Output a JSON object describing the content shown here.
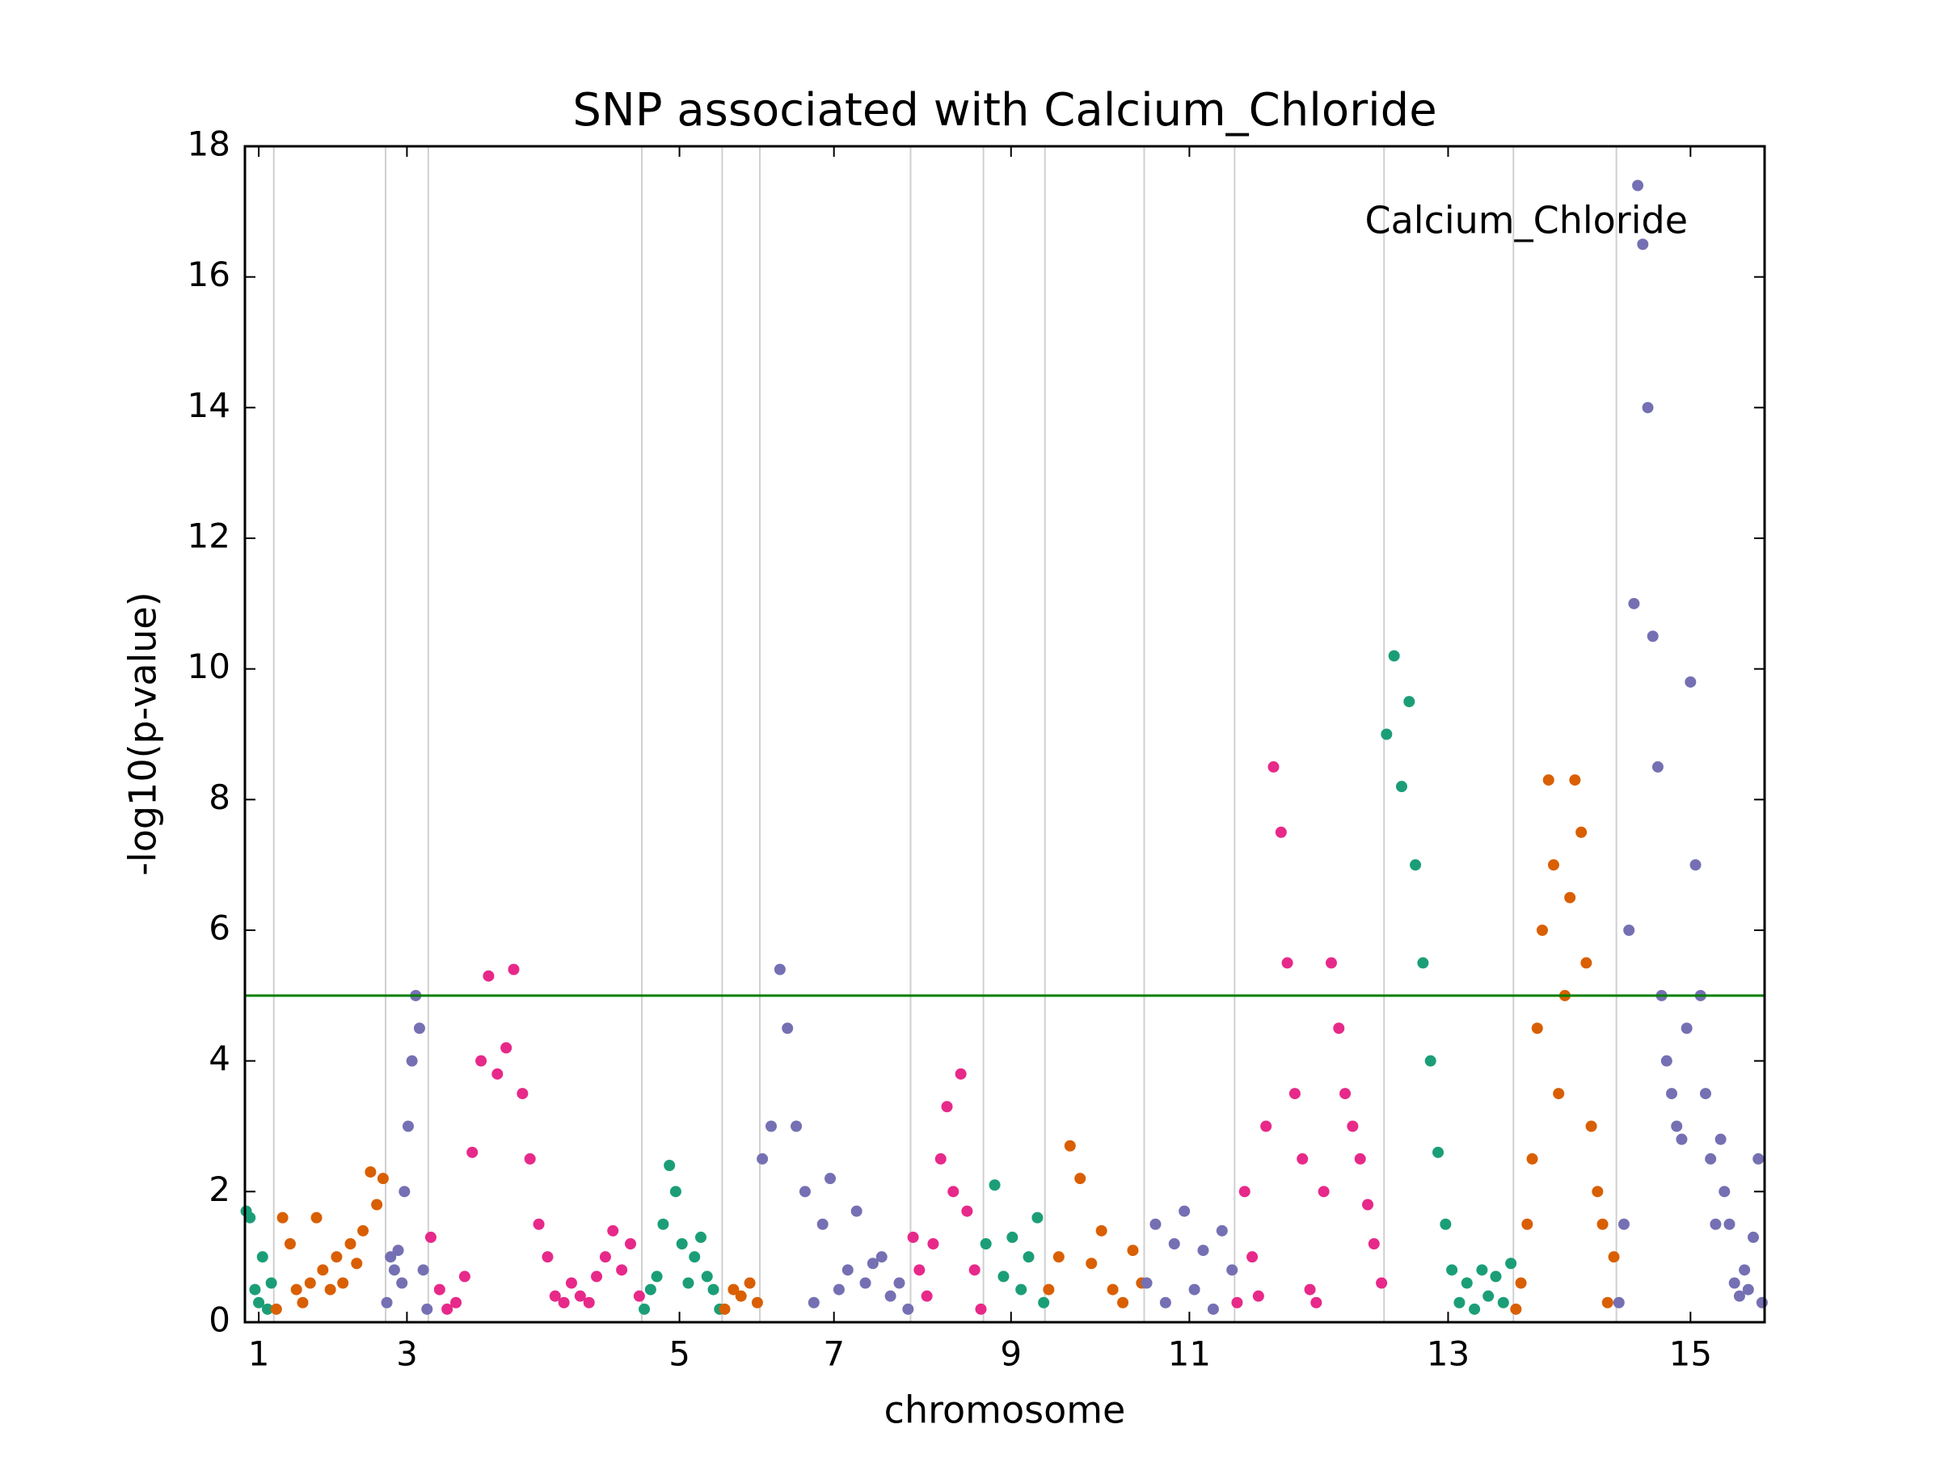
{
  "chart_data": {
    "type": "scatter",
    "title": "SNP associated with Calcium_Chloride",
    "xlabel": "chromosome",
    "ylabel": "-log10(p-value)",
    "legend": "Calcium_Chloride",
    "legend_position": "upper right",
    "xlim": [
      0,
      12.1
    ],
    "ylim": [
      0,
      18
    ],
    "yticks": [
      0,
      2,
      4,
      6,
      8,
      10,
      12,
      14,
      16,
      18
    ],
    "xticks": [
      {
        "value": 0.11,
        "label": "1"
      },
      {
        "value": 1.29,
        "label": "3"
      },
      {
        "value": 3.46,
        "label": "5"
      },
      {
        "value": 4.69,
        "label": "7"
      },
      {
        "value": 6.1,
        "label": "9"
      },
      {
        "value": 7.52,
        "label": "11"
      },
      {
        "value": 9.58,
        "label": "13"
      },
      {
        "value": 11.51,
        "label": "15"
      }
    ],
    "xgrid": [
      0.23,
      1.12,
      1.46,
      3.16,
      3.8,
      4.1,
      5.3,
      5.88,
      6.37,
      7.16,
      7.88,
      9.07,
      10.1,
      10.92
    ],
    "threshold": 5,
    "threshold_color": "#008000",
    "series": [
      {
        "color": "#1b9e77",
        "x": [
          0.01,
          0.04,
          0.08,
          0.11,
          0.14,
          0.18,
          0.21
        ],
        "values": [
          1.7,
          1.6,
          0.5,
          0.3,
          1.0,
          0.2,
          0.6
        ]
      },
      {
        "color": "#d95f02",
        "x": [
          0.25,
          0.3,
          0.36,
          0.41,
          0.46,
          0.52,
          0.57,
          0.62,
          0.68,
          0.73,
          0.78,
          0.84,
          0.89,
          0.94,
          1.0,
          1.05,
          1.1
        ],
        "values": [
          0.2,
          1.6,
          1.2,
          0.5,
          0.3,
          0.6,
          1.6,
          0.8,
          0.5,
          1.0,
          0.6,
          1.2,
          0.9,
          1.4,
          2.3,
          1.8,
          2.2
        ]
      },
      {
        "color": "#7570b3",
        "x": [
          1.13,
          1.16,
          1.19,
          1.22,
          1.25,
          1.27,
          1.3,
          1.33,
          1.36,
          1.39,
          1.42,
          1.45
        ],
        "values": [
          0.3,
          1.0,
          0.8,
          1.1,
          0.6,
          2.0,
          3.0,
          4.0,
          5.0,
          4.5,
          0.8,
          0.2
        ]
      },
      {
        "color": "#e7298a",
        "x": [
          1.48,
          1.55,
          1.61,
          1.68,
          1.75,
          1.81,
          1.88,
          1.94,
          2.01,
          2.08,
          2.14,
          2.21,
          2.27,
          2.34,
          2.41,
          2.47,
          2.54,
          2.6,
          2.67,
          2.74,
          2.8,
          2.87,
          2.93,
          3.0,
          3.07,
          3.14
        ],
        "values": [
          1.3,
          0.5,
          0.2,
          0.3,
          0.7,
          2.6,
          4.0,
          5.3,
          3.8,
          4.2,
          5.4,
          3.5,
          2.5,
          1.5,
          1.0,
          0.4,
          0.3,
          0.6,
          0.4,
          0.3,
          0.7,
          1.0,
          1.4,
          0.8,
          1.2,
          0.4
        ]
      },
      {
        "color": "#1b9e77",
        "x": [
          3.18,
          3.23,
          3.28,
          3.33,
          3.38,
          3.43,
          3.48,
          3.53,
          3.58,
          3.63,
          3.68,
          3.73,
          3.78
        ],
        "values": [
          0.2,
          0.5,
          0.7,
          1.5,
          2.4,
          2.0,
          1.2,
          0.6,
          1.0,
          1.3,
          0.7,
          0.5,
          0.2
        ]
      },
      {
        "color": "#d95f02",
        "x": [
          3.82,
          3.89,
          3.95,
          4.02,
          4.08
        ],
        "values": [
          0.2,
          0.5,
          0.4,
          0.6,
          0.3
        ]
      },
      {
        "color": "#7570b3",
        "x": [
          4.12,
          4.19,
          4.26,
          4.32,
          4.39,
          4.46,
          4.53,
          4.6,
          4.66,
          4.73,
          4.8,
          4.87,
          4.94,
          5.0,
          5.07,
          5.14,
          5.21,
          5.28
        ],
        "values": [
          2.5,
          3.0,
          5.4,
          4.5,
          3.0,
          2.0,
          0.3,
          1.5,
          2.2,
          0.5,
          0.8,
          1.7,
          0.6,
          0.9,
          1.0,
          0.4,
          0.6,
          0.2
        ]
      },
      {
        "color": "#e7298a",
        "x": [
          5.32,
          5.37,
          5.43,
          5.48,
          5.54,
          5.59,
          5.64,
          5.7,
          5.75,
          5.81,
          5.86
        ],
        "values": [
          1.3,
          0.8,
          0.4,
          1.2,
          2.5,
          3.3,
          2.0,
          3.8,
          1.7,
          0.8,
          0.2
        ]
      },
      {
        "color": "#1b9e77",
        "x": [
          5.9,
          5.97,
          6.04,
          6.11,
          6.18,
          6.24,
          6.31,
          6.36
        ],
        "values": [
          1.2,
          2.1,
          0.7,
          1.3,
          0.5,
          1.0,
          1.6,
          0.3
        ]
      },
      {
        "color": "#d95f02",
        "x": [
          6.4,
          6.48,
          6.57,
          6.65,
          6.74,
          6.82,
          6.91,
          6.99,
          7.07,
          7.14
        ],
        "values": [
          0.5,
          1.0,
          2.7,
          2.2,
          0.9,
          1.4,
          0.5,
          0.3,
          1.1,
          0.6
        ]
      },
      {
        "color": "#7570b3",
        "x": [
          7.18,
          7.25,
          7.33,
          7.4,
          7.48,
          7.56,
          7.63,
          7.71,
          7.78,
          7.86
        ],
        "values": [
          0.6,
          1.5,
          0.3,
          1.2,
          1.7,
          0.5,
          1.1,
          0.2,
          1.4,
          0.8
        ]
      },
      {
        "color": "#e7298a",
        "x": [
          7.9,
          7.96,
          8.02,
          8.07,
          8.13,
          8.19,
          8.25,
          8.3,
          8.36,
          8.42,
          8.48,
          8.53,
          8.59,
          8.65,
          8.71,
          8.76,
          8.82,
          8.88,
          8.94,
          8.99,
          9.05
        ],
        "values": [
          0.3,
          2.0,
          1.0,
          0.4,
          3.0,
          8.5,
          7.5,
          5.5,
          3.5,
          2.5,
          0.5,
          0.3,
          2.0,
          5.5,
          4.5,
          3.5,
          3.0,
          2.5,
          1.8,
          1.2,
          0.6
        ]
      },
      {
        "color": "#1b9e77",
        "x": [
          9.09,
          9.15,
          9.21,
          9.27,
          9.32,
          9.38,
          9.44,
          9.5,
          9.56,
          9.61,
          9.67,
          9.73,
          9.79,
          9.85,
          9.9,
          9.96,
          10.02,
          10.08
        ],
        "values": [
          9.0,
          10.2,
          8.2,
          9.5,
          7.0,
          5.5,
          4.0,
          2.6,
          1.5,
          0.8,
          0.3,
          0.6,
          0.2,
          0.8,
          0.4,
          0.7,
          0.3,
          0.9
        ]
      },
      {
        "color": "#d95f02",
        "x": [
          10.12,
          10.16,
          10.21,
          10.25,
          10.29,
          10.33,
          10.38,
          10.42,
          10.46,
          10.51,
          10.55,
          10.59,
          10.64,
          10.68,
          10.72,
          10.77,
          10.81,
          10.85,
          10.9
        ],
        "values": [
          0.2,
          0.6,
          1.5,
          2.5,
          4.5,
          6.0,
          8.3,
          7.0,
          3.5,
          5.0,
          6.5,
          8.3,
          7.5,
          5.5,
          3.0,
          2.0,
          1.5,
          0.3,
          1.0
        ]
      },
      {
        "color": "#7570b3",
        "x": [
          10.94,
          10.98,
          11.02,
          11.06,
          11.09,
          11.13,
          11.17,
          11.21,
          11.25,
          11.28,
          11.32,
          11.36,
          11.4,
          11.44,
          11.48,
          11.51,
          11.55,
          11.59,
          11.63,
          11.67,
          11.71,
          11.75,
          11.78,
          11.82,
          11.86,
          11.9,
          11.94,
          11.97,
          12.01,
          12.05,
          12.08
        ],
        "values": [
          0.3,
          1.5,
          6.0,
          11.0,
          17.4,
          16.5,
          14.0,
          10.5,
          8.5,
          5.0,
          4.0,
          3.5,
          3.0,
          2.8,
          4.5,
          9.8,
          7.0,
          5.0,
          3.5,
          2.5,
          1.5,
          2.8,
          2.0,
          1.5,
          0.6,
          0.4,
          0.8,
          0.5,
          1.3,
          2.5,
          0.3
        ]
      }
    ]
  }
}
